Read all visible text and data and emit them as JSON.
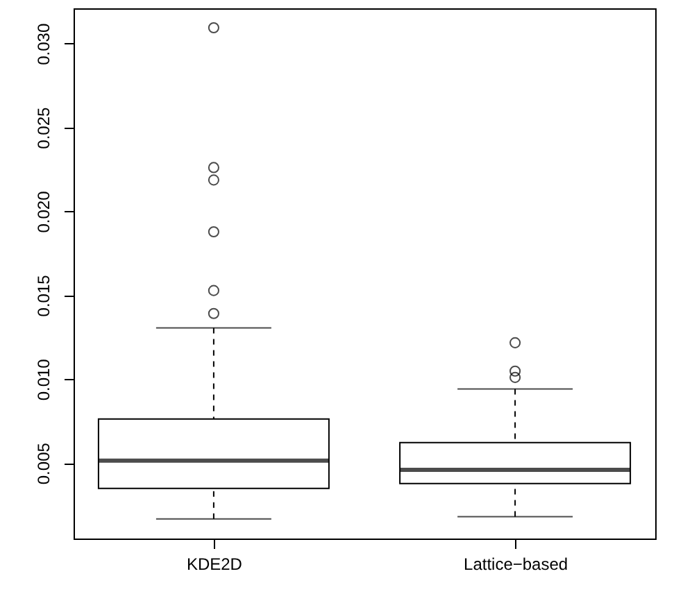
{
  "chart_data": {
    "type": "box",
    "categories": [
      "KDE2D",
      "Lattice−based"
    ],
    "boxes": [
      {
        "low": 0.00167,
        "q1": 0.00349,
        "median": 0.00514,
        "q3": 0.00762,
        "high": 0.01305,
        "outliers": [
          0.03094,
          0.02261,
          0.02187,
          0.01878,
          0.01528,
          0.01391
        ]
      },
      {
        "low": 0.0018,
        "q1": 0.00378,
        "median": 0.00459,
        "q3": 0.00622,
        "high": 0.00941,
        "outliers": [
          0.01217,
          0.01048,
          0.0101
        ]
      }
    ],
    "ylim": [
      0.0005,
      0.0321
    ],
    "yticks": [
      {
        "value": 0.005,
        "label": "0.005"
      },
      {
        "value": 0.01,
        "label": "0.010"
      },
      {
        "value": 0.015,
        "label": "0.015"
      },
      {
        "value": 0.02,
        "label": "0.020"
      },
      {
        "value": 0.025,
        "label": "0.025"
      },
      {
        "value": 0.03,
        "label": "0.030"
      }
    ],
    "marker": "circle"
  }
}
